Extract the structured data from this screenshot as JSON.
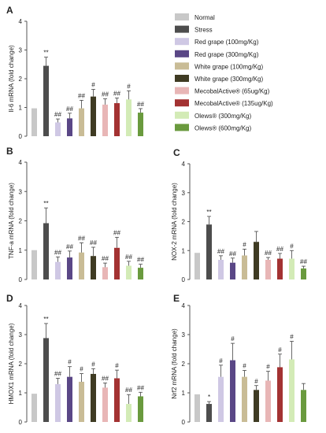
{
  "figure": {
    "colors": {
      "normal": "#c8c8c8",
      "stress": "#4d4d4d",
      "red_grape_100": "#cfc8e4",
      "red_grape_300": "#5a4786",
      "white_grape_100": "#c9bc96",
      "white_grape_300": "#3f3b23",
      "mecobal_65": "#e8b6b6",
      "mecobal_135": "#a33232",
      "olews_300": "#d3ebb6",
      "olews_600": "#6a9a3e"
    }
  },
  "legend": {
    "items": [
      {
        "label": "Normal",
        "color": "#c8c8c8"
      },
      {
        "label": "Stress",
        "color": "#4d4d4d"
      },
      {
        "label": "Red grape (100mg/Kg)",
        "color": "#cfc8e4"
      },
      {
        "label": "Red grape (300mg/Kg)",
        "color": "#5a4786"
      },
      {
        "label": "White grape (100mg/Kg)",
        "color": "#c9bc96"
      },
      {
        "label": "White grape (300mg/Kg)",
        "color": "#3f3b23"
      },
      {
        "label": "MecobalActive® (65ug/Kg)",
        "color": "#e8b6b6"
      },
      {
        "label": "MecobalActive® (135ug/Kg)",
        "color": "#a33232"
      },
      {
        "label": "Olews® (300mg/Kg)",
        "color": "#d3ebb6"
      },
      {
        "label": "Olews® (600mg/Kg)",
        "color": "#6a9a3e"
      }
    ]
  },
  "chart_data": [
    {
      "type": "bar",
      "panel": "A",
      "ylabel": "Il-6 mRNA  (fold change)",
      "ylim": [
        0,
        4
      ],
      "yticks": [
        "0",
        "1",
        "2",
        "3",
        "4"
      ],
      "categories": [
        "Normal",
        "Stress",
        "Red grape (100mg/Kg)",
        "Red grape (300mg/Kg)",
        "White grape (100mg/Kg)",
        "White grape (300mg/Kg)",
        "MecobalActive® (65ug/Kg)",
        "MecobalActive® (135ug/Kg)",
        "Olews® (300mg/Kg)",
        "Olews® (600mg/Kg)"
      ],
      "values": [
        0.97,
        2.45,
        0.48,
        0.62,
        0.97,
        1.38,
        1.1,
        1.15,
        1.28,
        0.82
      ],
      "errors": [
        0,
        0.3,
        0.12,
        0.18,
        0.28,
        0.25,
        0.2,
        0.18,
        0.3,
        0.14
      ],
      "annotations": [
        "",
        "**",
        "##",
        "##",
        "##",
        "#",
        "##",
        "##",
        "#",
        "##"
      ]
    },
    {
      "type": "bar",
      "panel": "B",
      "ylabel": "TNF-a mRNA  (fold change)",
      "ylim": [
        0,
        4
      ],
      "yticks": [
        "0",
        "1",
        "2",
        "3",
        "4"
      ],
      "categories": [
        "Normal",
        "Stress",
        "Red grape (100mg/Kg)",
        "Red grape (300mg/Kg)",
        "White grape (100mg/Kg)",
        "White grape (300mg/Kg)",
        "MecobalActive® (65ug/Kg)",
        "MecobalActive® (135ug/Kg)",
        "Olews® (300mg/Kg)",
        "Olews® (600mg/Kg)"
      ],
      "values": [
        1.0,
        1.92,
        0.6,
        0.75,
        0.92,
        0.8,
        0.42,
        1.08,
        0.47,
        0.4
      ],
      "errors": [
        0,
        0.52,
        0.17,
        0.22,
        0.33,
        0.3,
        0.14,
        0.36,
        0.15,
        0.12
      ],
      "annotations": [
        "",
        "**",
        "##",
        "##",
        "##",
        "##",
        "##",
        "##",
        "##",
        "##"
      ]
    },
    {
      "type": "bar",
      "panel": "C",
      "ylabel": "NOX-2 mRNA  (fold change)",
      "ylim": [
        0,
        4
      ],
      "yticks": [
        "0",
        "1",
        "2",
        "3",
        "4"
      ],
      "categories": [
        "Normal",
        "Stress",
        "Red grape (100mg/Kg)",
        "Red grape (300mg/Kg)",
        "White grape (100mg/Kg)",
        "White grape (300mg/Kg)",
        "MecobalActive® (65ug/Kg)",
        "MecobalActive® (135ug/Kg)",
        "Olews® (300mg/Kg)",
        "Olews® (600mg/Kg)"
      ],
      "values": [
        0.92,
        1.9,
        0.68,
        0.58,
        0.83,
        1.3,
        0.68,
        0.72,
        0.72,
        0.38
      ],
      "errors": [
        0,
        0.28,
        0.14,
        0.16,
        0.22,
        0.36,
        0.08,
        0.18,
        0.28,
        0.08
      ],
      "annotations": [
        "",
        "**",
        "##",
        "##",
        "#",
        "",
        "##",
        "##",
        "#",
        "##"
      ]
    },
    {
      "type": "bar",
      "panel": "D",
      "ylabel": "HMOX1 mRNA  (fold change)",
      "ylim": [
        0,
        4
      ],
      "yticks": [
        "0",
        "1",
        "2",
        "3",
        "4"
      ],
      "categories": [
        "Normal",
        "Stress",
        "Red grape (100mg/Kg)",
        "Red grape (300mg/Kg)",
        "White grape (100mg/Kg)",
        "White grape (300mg/Kg)",
        "MecobalActive® (65ug/Kg)",
        "MecobalActive® (135ug/Kg)",
        "Olews® (300mg/Kg)",
        "Olews® (600mg/Kg)"
      ],
      "values": [
        0.97,
        2.88,
        1.3,
        1.55,
        1.38,
        1.65,
        1.18,
        1.5,
        0.62,
        0.88
      ],
      "errors": [
        0,
        0.5,
        0.2,
        0.35,
        0.28,
        0.18,
        0.16,
        0.28,
        0.32,
        0.14
      ],
      "annotations": [
        "",
        "**",
        "##",
        "#",
        "#",
        "#",
        "##",
        "#",
        "##",
        "##"
      ]
    },
    {
      "type": "bar",
      "panel": "E",
      "ylabel": "Nrf2 mRNA  (fold change)",
      "ylim": [
        0,
        4
      ],
      "yticks": [
        "0",
        "1",
        "2",
        "3",
        "4"
      ],
      "categories": [
        "Normal",
        "Stress",
        "Red grape (100mg/Kg)",
        "Red grape (300mg/Kg)",
        "White grape (100mg/Kg)",
        "White grape (300mg/Kg)",
        "MecobalActive® (65ug/Kg)",
        "MecobalActive® (135ug/Kg)",
        "Olews® (300mg/Kg)",
        "Olews® (600mg/Kg)"
      ],
      "values": [
        0.95,
        0.62,
        1.55,
        2.12,
        1.55,
        1.1,
        1.42,
        1.88,
        2.15,
        1.1
      ],
      "errors": [
        0,
        0.08,
        0.4,
        0.58,
        0.22,
        0.15,
        0.32,
        0.45,
        0.62,
        0.22
      ],
      "annotations": [
        "",
        "*",
        "#",
        "#",
        "#",
        "#",
        "#",
        "#",
        "#",
        ""
      ]
    }
  ]
}
